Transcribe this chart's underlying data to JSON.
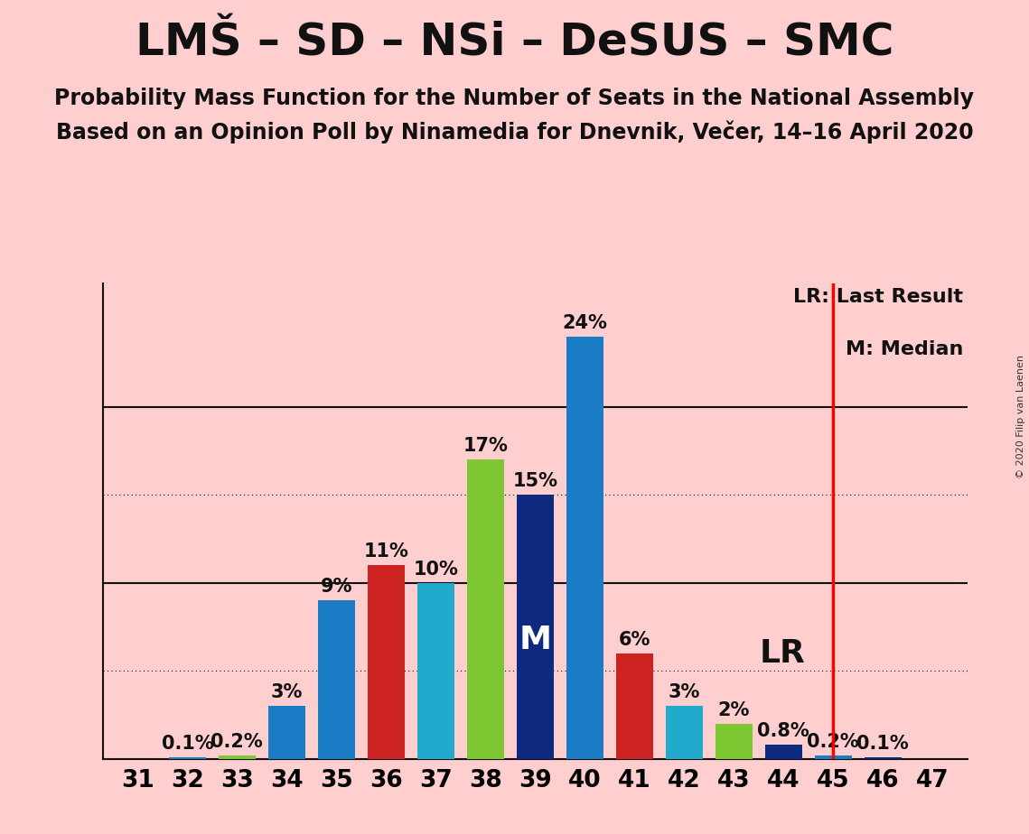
{
  "title": "LMŠ – SD – NSi – DeSUS – SMC",
  "subtitle1": "Probability Mass Function for the Number of Seats in the National Assembly",
  "subtitle2": "Based on an Opinion Poll by Ninamedia for Dnevnik, Večer, 14–16 April 2020",
  "copyright": "© 2020 Filip van Laenen",
  "seats": [
    31,
    32,
    33,
    34,
    35,
    36,
    37,
    38,
    39,
    40,
    41,
    42,
    43,
    44,
    45,
    46,
    47
  ],
  "probabilities": [
    0.0,
    0.1,
    0.2,
    3.0,
    9.0,
    11.0,
    10.0,
    17.0,
    15.0,
    24.0,
    6.0,
    3.0,
    2.0,
    0.8,
    0.2,
    0.1,
    0.0
  ],
  "bar_colors": [
    "#1A7CC4",
    "#1A7CC4",
    "#7DC832",
    "#1A7CC4",
    "#1A7CC4",
    "#CC2222",
    "#22AACC",
    "#7DC832",
    "#0D2A80",
    "#1A7CC4",
    "#CC2222",
    "#22AACC",
    "#7DC832",
    "#0D2A80",
    "#1A7CC4",
    "#0D2A80",
    "#1A7CC4"
  ],
  "median": 39,
  "last_result": 45,
  "background_color": "#FFCECE",
  "grid_color": "#111111",
  "lr_line_color": "#FF0000",
  "title_fontsize": 36,
  "subtitle_fontsize": 17,
  "bar_label_fontsize": 15,
  "axis_fontsize": 19,
  "median_label_fontsize": 26,
  "lr_label_fontsize": 26,
  "legend_fontsize": 16,
  "copyright_fontsize": 8
}
